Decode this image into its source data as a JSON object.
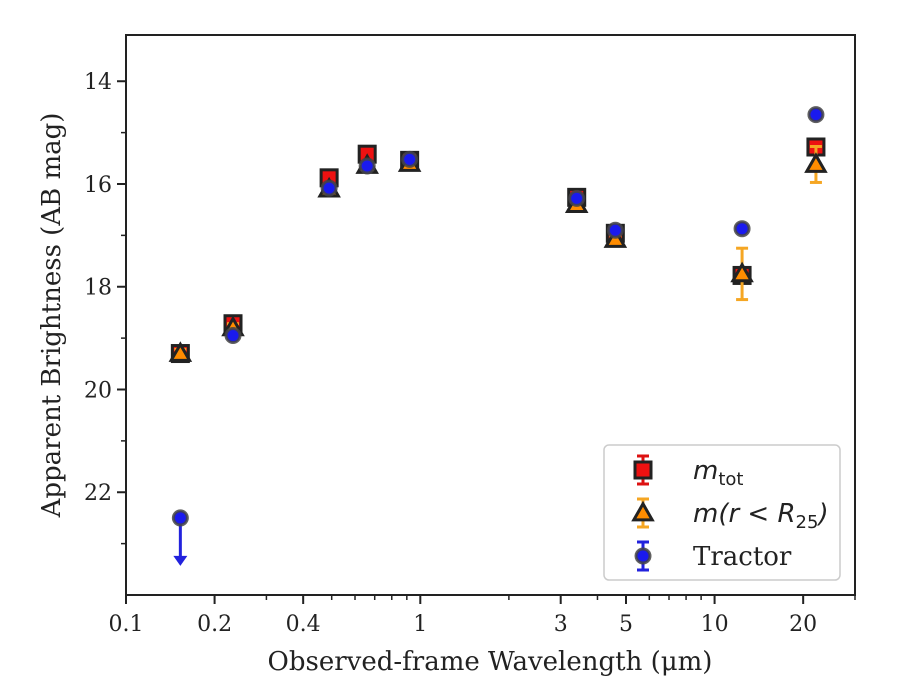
{
  "chart_data": {
    "type": "scatter",
    "xlabel": "Observed-frame Wavelength (μm)",
    "ylabel": "Apparent Brightness (AB mag)",
    "xscale": "log",
    "xlim": [
      0.1,
      30
    ],
    "ylim": [
      24,
      13.1
    ],
    "y_inverted": true,
    "grid": false,
    "legend_placement": "lower-right",
    "xticks": [
      {
        "value": 0.1,
        "label": "0.1"
      },
      {
        "value": 0.2,
        "label": "0.2"
      },
      {
        "value": 0.4,
        "label": "0.4"
      },
      {
        "value": 1,
        "label": "1"
      },
      {
        "value": 3,
        "label": "3"
      },
      {
        "value": 5,
        "label": "5"
      },
      {
        "value": 10,
        "label": "10"
      },
      {
        "value": 20,
        "label": "20"
      }
    ],
    "yticks": [
      {
        "value": 14,
        "label": "14"
      },
      {
        "value": 16,
        "label": "16"
      },
      {
        "value": 18,
        "label": "18"
      },
      {
        "value": 20,
        "label": "20"
      },
      {
        "value": 22,
        "label": "22"
      }
    ],
    "series": [
      {
        "key": "m-tot",
        "legend_main": "m",
        "legend_sub": "tot",
        "marker": "square",
        "face_color": "#ee1111",
        "edge_color": "#222222",
        "errorbar_color": "#dd1111",
        "points": [
          {
            "x": 0.153,
            "y": 19.3,
            "err": 0.05
          },
          {
            "x": 0.231,
            "y": 18.72,
            "err": 0.05
          },
          {
            "x": 0.49,
            "y": 15.88,
            "err": 0.05
          },
          {
            "x": 0.66,
            "y": 15.42,
            "err": 0.05
          },
          {
            "x": 0.92,
            "y": 15.54,
            "err": 0.05
          },
          {
            "x": 3.4,
            "y": 16.26,
            "err": 0.05
          },
          {
            "x": 4.6,
            "y": 16.96,
            "err": 0.05
          },
          {
            "x": 12.4,
            "y": 17.78,
            "err": 0.05
          },
          {
            "x": 22.1,
            "y": 15.28,
            "err": 0.05
          }
        ]
      },
      {
        "key": "m-r25",
        "legend_main": "m(r < R",
        "legend_sub": "25",
        "legend_tail": ")",
        "marker": "triangle",
        "face_color": "#ff8c00",
        "edge_color": "#222222",
        "errorbar_color": "#f5a623",
        "points": [
          {
            "x": 0.153,
            "y": 19.3,
            "err": 0.08
          },
          {
            "x": 0.231,
            "y": 18.8,
            "err": 0.08
          },
          {
            "x": 0.49,
            "y": 16.1,
            "err": 0.06
          },
          {
            "x": 0.66,
            "y": 15.64,
            "err": 0.05
          },
          {
            "x": 0.92,
            "y": 15.6,
            "err": 0.05
          },
          {
            "x": 3.4,
            "y": 16.4,
            "err": 0.05
          },
          {
            "x": 4.6,
            "y": 17.08,
            "err": 0.06
          },
          {
            "x": 12.4,
            "y": 17.75,
            "err": 0.5
          },
          {
            "x": 22.1,
            "y": 15.62,
            "err": 0.35
          }
        ]
      },
      {
        "key": "tractor",
        "legend_main": "Tractor",
        "marker": "circle",
        "face_color": "#1a1aee",
        "edge_color": "#444444",
        "errorbar_color": "#2222dd",
        "points": [
          {
            "x": 0.153,
            "y": 22.5,
            "upper_limit": true
          },
          {
            "x": 0.231,
            "y": 18.95,
            "err": 0.05
          },
          {
            "x": 0.49,
            "y": 16.08,
            "err": 0.05
          },
          {
            "x": 0.66,
            "y": 15.65,
            "err": 0.05
          },
          {
            "x": 0.92,
            "y": 15.52,
            "err": 0.05
          },
          {
            "x": 3.4,
            "y": 16.28,
            "err": 0.05
          },
          {
            "x": 4.6,
            "y": 16.9,
            "err": 0.05
          },
          {
            "x": 12.4,
            "y": 16.87,
            "err": 0.05
          },
          {
            "x": 22.1,
            "y": 14.65,
            "err": 0.05
          }
        ]
      }
    ]
  }
}
